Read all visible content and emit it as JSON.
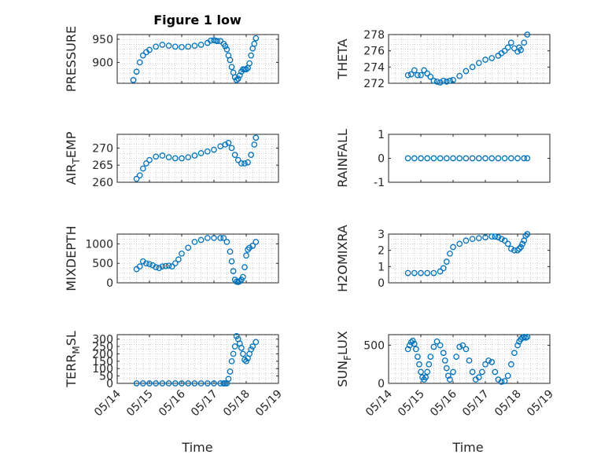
{
  "title": "Figure 1 low",
  "xlabel": "Time",
  "xtick_labels": [
    "05/14",
    "05/15",
    "05/16",
    "05/17",
    "05/18",
    "05/19"
  ],
  "colors": {
    "marker": "#0072BD",
    "axes": "#262626",
    "grid": "#b0b0b0"
  },
  "chart_data": [
    {
      "type": "scatter",
      "ylabel": "PRESSURE",
      "ylim": [
        855,
        960
      ],
      "yticks": [
        900,
        950
      ],
      "xlim": [
        0,
        5
      ],
      "grid": true,
      "x": [
        0.5,
        0.6,
        0.7,
        0.8,
        0.9,
        1.0,
        1.2,
        1.4,
        1.6,
        1.8,
        2.0,
        2.2,
        2.4,
        2.6,
        2.8,
        2.9,
        3.0,
        3.05,
        3.1,
        3.2,
        3.3,
        3.35,
        3.4,
        3.45,
        3.5,
        3.55,
        3.6,
        3.65,
        3.7,
        3.75,
        3.8,
        3.85,
        3.9,
        3.95,
        4.0,
        4.05,
        4.1,
        4.15,
        4.2,
        4.25,
        4.3
      ],
      "y": [
        862,
        880,
        900,
        915,
        922,
        927,
        934,
        938,
        936,
        934,
        933,
        934,
        936,
        938,
        942,
        947,
        948,
        947,
        946,
        946,
        940,
        935,
        928,
        915,
        905,
        890,
        878,
        868,
        862,
        865,
        872,
        880,
        885,
        885,
        885,
        888,
        898,
        915,
        930,
        940,
        952
      ]
    },
    {
      "type": "scatter",
      "ylabel": "THETA",
      "ylim": [
        272,
        278
      ],
      "yticks": [
        272,
        274,
        276,
        278
      ],
      "xlim": [
        0,
        5
      ],
      "grid": true,
      "x": [
        0.6,
        0.7,
        0.8,
        0.9,
        1.0,
        1.1,
        1.2,
        1.3,
        1.4,
        1.5,
        1.6,
        1.7,
        1.8,
        1.9,
        2.0,
        2.2,
        2.4,
        2.6,
        2.8,
        3.0,
        3.2,
        3.4,
        3.5,
        3.6,
        3.7,
        3.8,
        3.9,
        4.0,
        4.05,
        4.1,
        4.2,
        4.3
      ],
      "y": [
        273.0,
        273.1,
        273.6,
        273.0,
        273.0,
        273.6,
        273.2,
        272.8,
        272.3,
        272.2,
        272.1,
        272.3,
        272.2,
        272.3,
        272.4,
        272.9,
        273.5,
        274.0,
        274.5,
        274.9,
        275.1,
        275.4,
        275.7,
        276.0,
        276.4,
        277.0,
        276.3,
        275.9,
        276.4,
        276.1,
        277.0,
        278.0
      ]
    },
    {
      "type": "scatter",
      "ylabel": "AIR_TEMP",
      "ylim": [
        260,
        274
      ],
      "yticks": [
        260,
        265,
        270
      ],
      "xlim": [
        0,
        5
      ],
      "grid": true,
      "x": [
        0.6,
        0.7,
        0.8,
        0.9,
        1.0,
        1.2,
        1.4,
        1.6,
        1.8,
        2.0,
        2.2,
        2.4,
        2.6,
        2.8,
        3.0,
        3.2,
        3.35,
        3.45,
        3.55,
        3.65,
        3.75,
        3.85,
        3.95,
        4.05,
        4.15,
        4.25,
        4.3
      ],
      "y": [
        261.0,
        262.0,
        264.0,
        265.5,
        266.5,
        267.5,
        267.8,
        267.3,
        267.0,
        267.0,
        267.3,
        267.8,
        268.5,
        269.0,
        269.5,
        270.5,
        271.0,
        271.5,
        270.0,
        268.0,
        266.5,
        265.5,
        265.5,
        265.8,
        268.0,
        271.0,
        273.0
      ]
    },
    {
      "type": "scatter",
      "ylabel": "RAINFALL",
      "ylim": [
        -1,
        1
      ],
      "yticks": [
        -1,
        0,
        1
      ],
      "xlim": [
        0,
        5
      ],
      "grid": false,
      "x": [
        0.6,
        0.8,
        1.0,
        1.2,
        1.4,
        1.6,
        1.8,
        2.0,
        2.2,
        2.4,
        2.6,
        2.8,
        3.0,
        3.2,
        3.4,
        3.6,
        3.8,
        4.0,
        4.2,
        4.3
      ],
      "y": [
        0,
        0,
        0,
        0,
        0,
        0,
        0,
        0,
        0,
        0,
        0,
        0,
        0,
        0,
        0,
        0,
        0,
        0,
        0,
        0
      ]
    },
    {
      "type": "scatter",
      "ylabel": "MIXDEPTH",
      "ylim": [
        0,
        1250
      ],
      "yticks": [
        0,
        500,
        1000
      ],
      "xlim": [
        0,
        5
      ],
      "grid": true,
      "x": [
        0.6,
        0.7,
        0.8,
        0.9,
        1.0,
        1.1,
        1.2,
        1.3,
        1.4,
        1.5,
        1.6,
        1.7,
        1.8,
        1.9,
        2.0,
        2.2,
        2.4,
        2.6,
        2.8,
        3.0,
        3.2,
        3.3,
        3.4,
        3.5,
        3.55,
        3.6,
        3.65,
        3.7,
        3.75,
        3.8,
        3.85,
        3.9,
        3.95,
        4.0,
        4.05,
        4.1,
        4.2,
        4.3
      ],
      "y": [
        350,
        420,
        550,
        500,
        480,
        450,
        400,
        380,
        420,
        430,
        440,
        420,
        500,
        600,
        750,
        900,
        1050,
        1100,
        1150,
        1150,
        1150,
        1150,
        1050,
        800,
        550,
        300,
        80,
        30,
        20,
        40,
        80,
        150,
        400,
        700,
        850,
        900,
        950,
        1050
      ]
    },
    {
      "type": "scatter",
      "ylabel": "H2OMIXRA",
      "ylim": [
        0,
        3
      ],
      "yticks": [
        0,
        1,
        2,
        3
      ],
      "xlim": [
        0,
        5
      ],
      "grid": true,
      "x": [
        0.6,
        0.8,
        1.0,
        1.2,
        1.4,
        1.6,
        1.7,
        1.8,
        1.9,
        2.0,
        2.2,
        2.4,
        2.6,
        2.8,
        3.0,
        3.2,
        3.3,
        3.4,
        3.5,
        3.6,
        3.7,
        3.8,
        3.9,
        4.0,
        4.05,
        4.1,
        4.15,
        4.2,
        4.25,
        4.3
      ],
      "y": [
        0.6,
        0.6,
        0.6,
        0.6,
        0.6,
        0.7,
        0.9,
        1.3,
        1.8,
        2.2,
        2.4,
        2.6,
        2.7,
        2.75,
        2.8,
        2.85,
        2.85,
        2.8,
        2.7,
        2.6,
        2.4,
        2.1,
        2.0,
        2.0,
        2.1,
        2.2,
        2.4,
        2.6,
        2.9,
        3.0
      ]
    },
    {
      "type": "scatter",
      "ylabel": "TERR_MSL",
      "ylim": [
        0,
        330
      ],
      "yticks": [
        0,
        50,
        100,
        150,
        200,
        250,
        300
      ],
      "xlim": [
        0,
        5
      ],
      "grid": true,
      "x": [
        0.6,
        0.8,
        1.0,
        1.2,
        1.4,
        1.6,
        1.8,
        2.0,
        2.2,
        2.4,
        2.6,
        2.8,
        3.0,
        3.2,
        3.3,
        3.35,
        3.4,
        3.45,
        3.5,
        3.55,
        3.6,
        3.65,
        3.7,
        3.75,
        3.8,
        3.85,
        3.9,
        3.95,
        4.0,
        4.05,
        4.1,
        4.15,
        4.2,
        4.3
      ],
      "y": [
        0,
        0,
        0,
        0,
        0,
        0,
        0,
        0,
        0,
        0,
        0,
        0,
        0,
        0,
        0,
        0,
        0,
        30,
        80,
        150,
        200,
        250,
        320,
        300,
        270,
        240,
        200,
        160,
        150,
        170,
        200,
        230,
        250,
        280
      ]
    },
    {
      "type": "scatter",
      "ylabel": "SUN_FLUX",
      "ylim": [
        0,
        640
      ],
      "yticks": [
        0,
        500
      ],
      "xlim": [
        0,
        5
      ],
      "grid": true,
      "x": [
        0.6,
        0.65,
        0.7,
        0.75,
        0.8,
        0.85,
        0.9,
        0.95,
        1.0,
        1.05,
        1.1,
        1.15,
        1.2,
        1.25,
        1.3,
        1.4,
        1.5,
        1.6,
        1.7,
        1.75,
        1.8,
        1.85,
        1.9,
        2.0,
        2.1,
        2.2,
        2.3,
        2.4,
        2.5,
        2.6,
        2.7,
        2.8,
        2.9,
        3.0,
        3.1,
        3.2,
        3.3,
        3.4,
        3.5,
        3.6,
        3.7,
        3.8,
        3.9,
        4.0,
        4.05,
        4.1,
        4.15,
        4.2,
        4.25,
        4.3
      ],
      "y": [
        450,
        500,
        540,
        560,
        520,
        450,
        350,
        250,
        150,
        80,
        50,
        80,
        150,
        250,
        350,
        480,
        550,
        500,
        400,
        300,
        200,
        100,
        50,
        150,
        350,
        480,
        500,
        450,
        300,
        150,
        50,
        80,
        150,
        250,
        300,
        280,
        150,
        50,
        20,
        30,
        100,
        250,
        400,
        500,
        550,
        580,
        600,
        610,
        600,
        610
      ]
    }
  ]
}
